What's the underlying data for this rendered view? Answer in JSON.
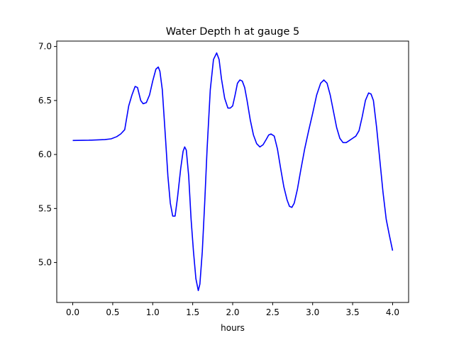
{
  "chart_data": {
    "type": "line",
    "title": "Water Depth h at gauge 5",
    "xlabel": "hours",
    "ylabel": "",
    "xlim": [
      -0.2,
      4.2
    ],
    "ylim": [
      4.63,
      7.05
    ],
    "xticks": [
      0.0,
      0.5,
      1.0,
      1.5,
      2.0,
      2.5,
      3.0,
      3.5,
      4.0
    ],
    "xtick_labels": [
      "0.0",
      "0.5",
      "1.0",
      "1.5",
      "2.0",
      "2.5",
      "3.0",
      "3.5",
      "4.0"
    ],
    "yticks": [
      5.0,
      5.5,
      6.0,
      6.5,
      7.0
    ],
    "ytick_labels": [
      "5.0",
      "5.5",
      "6.0",
      "6.5",
      "7.0"
    ],
    "grid": false,
    "series": [
      {
        "color": "#0000ff",
        "x": [
          0.0,
          0.2,
          0.4,
          0.48,
          0.55,
          0.6,
          0.65,
          0.7,
          0.74,
          0.78,
          0.81,
          0.85,
          0.88,
          0.92,
          0.96,
          1.0,
          1.04,
          1.07,
          1.09,
          1.12,
          1.16,
          1.19,
          1.22,
          1.25,
          1.28,
          1.31,
          1.35,
          1.38,
          1.4,
          1.42,
          1.45,
          1.48,
          1.51,
          1.54,
          1.57,
          1.59,
          1.62,
          1.65,
          1.68,
          1.72,
          1.76,
          1.8,
          1.83,
          1.86,
          1.9,
          1.94,
          1.97,
          2.0,
          2.03,
          2.06,
          2.09,
          2.12,
          2.15,
          2.18,
          2.22,
          2.26,
          2.3,
          2.34,
          2.38,
          2.42,
          2.45,
          2.48,
          2.52,
          2.56,
          2.6,
          2.64,
          2.68,
          2.71,
          2.74,
          2.77,
          2.81,
          2.85,
          2.9,
          2.95,
          3.0,
          3.05,
          3.1,
          3.14,
          3.18,
          3.22,
          3.26,
          3.3,
          3.34,
          3.38,
          3.42,
          3.46,
          3.5,
          3.54,
          3.58,
          3.62,
          3.66,
          3.7,
          3.73,
          3.76,
          3.8,
          3.84,
          3.88,
          3.92,
          3.96,
          4.0
        ],
        "y": [
          6.13,
          6.132,
          6.138,
          6.145,
          6.165,
          6.19,
          6.23,
          6.45,
          6.55,
          6.63,
          6.62,
          6.5,
          6.47,
          6.48,
          6.55,
          6.68,
          6.79,
          6.81,
          6.77,
          6.6,
          6.15,
          5.8,
          5.55,
          5.43,
          5.43,
          5.6,
          5.87,
          6.03,
          6.07,
          6.04,
          5.8,
          5.4,
          5.1,
          4.85,
          4.74,
          4.8,
          5.1,
          5.55,
          6.05,
          6.6,
          6.88,
          6.94,
          6.88,
          6.7,
          6.52,
          6.43,
          6.43,
          6.45,
          6.55,
          6.66,
          6.69,
          6.68,
          6.62,
          6.5,
          6.32,
          6.18,
          6.1,
          6.07,
          6.09,
          6.14,
          6.18,
          6.19,
          6.17,
          6.05,
          5.87,
          5.7,
          5.58,
          5.52,
          5.51,
          5.55,
          5.68,
          5.85,
          6.05,
          6.22,
          6.38,
          6.55,
          6.66,
          6.69,
          6.66,
          6.55,
          6.4,
          6.25,
          6.15,
          6.11,
          6.11,
          6.13,
          6.15,
          6.17,
          6.22,
          6.35,
          6.5,
          6.57,
          6.56,
          6.5,
          6.25,
          5.95,
          5.65,
          5.4,
          5.25,
          5.11
        ]
      }
    ]
  }
}
